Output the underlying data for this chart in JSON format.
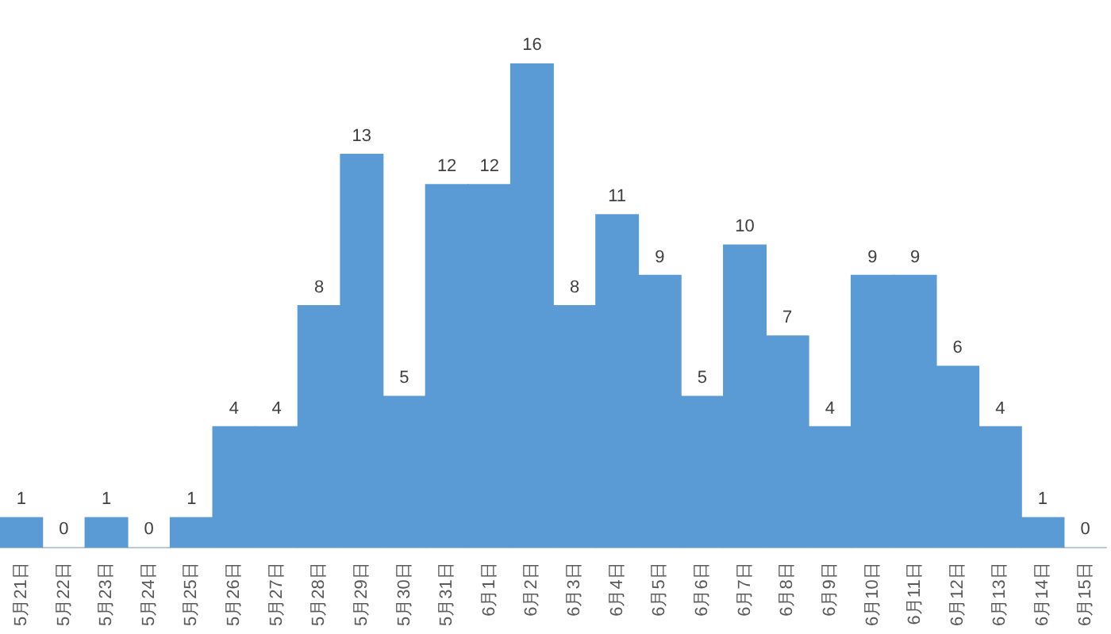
{
  "chart_data": {
    "type": "bar",
    "categories": [
      "5月21日",
      "5月22日",
      "5月23日",
      "5月24日",
      "5月25日",
      "5月26日",
      "5月27日",
      "5月28日",
      "5月29日",
      "5月30日",
      "5月31日",
      "6月1日",
      "6月2日",
      "6月3日",
      "6月4日",
      "6月5日",
      "6月6日",
      "6月7日",
      "6月8日",
      "6月9日",
      "6月10日",
      "6月11日",
      "6月12日",
      "6月13日",
      "6月14日",
      "6月15日"
    ],
    "values": [
      1,
      0,
      1,
      0,
      1,
      4,
      4,
      8,
      13,
      5,
      12,
      12,
      16,
      8,
      11,
      9,
      5,
      10,
      7,
      4,
      9,
      9,
      6,
      4,
      1,
      0
    ],
    "color": "#5b9bd5",
    "tick_labels": "x",
    "data_labels": true,
    "grid": false,
    "legend": false
  }
}
